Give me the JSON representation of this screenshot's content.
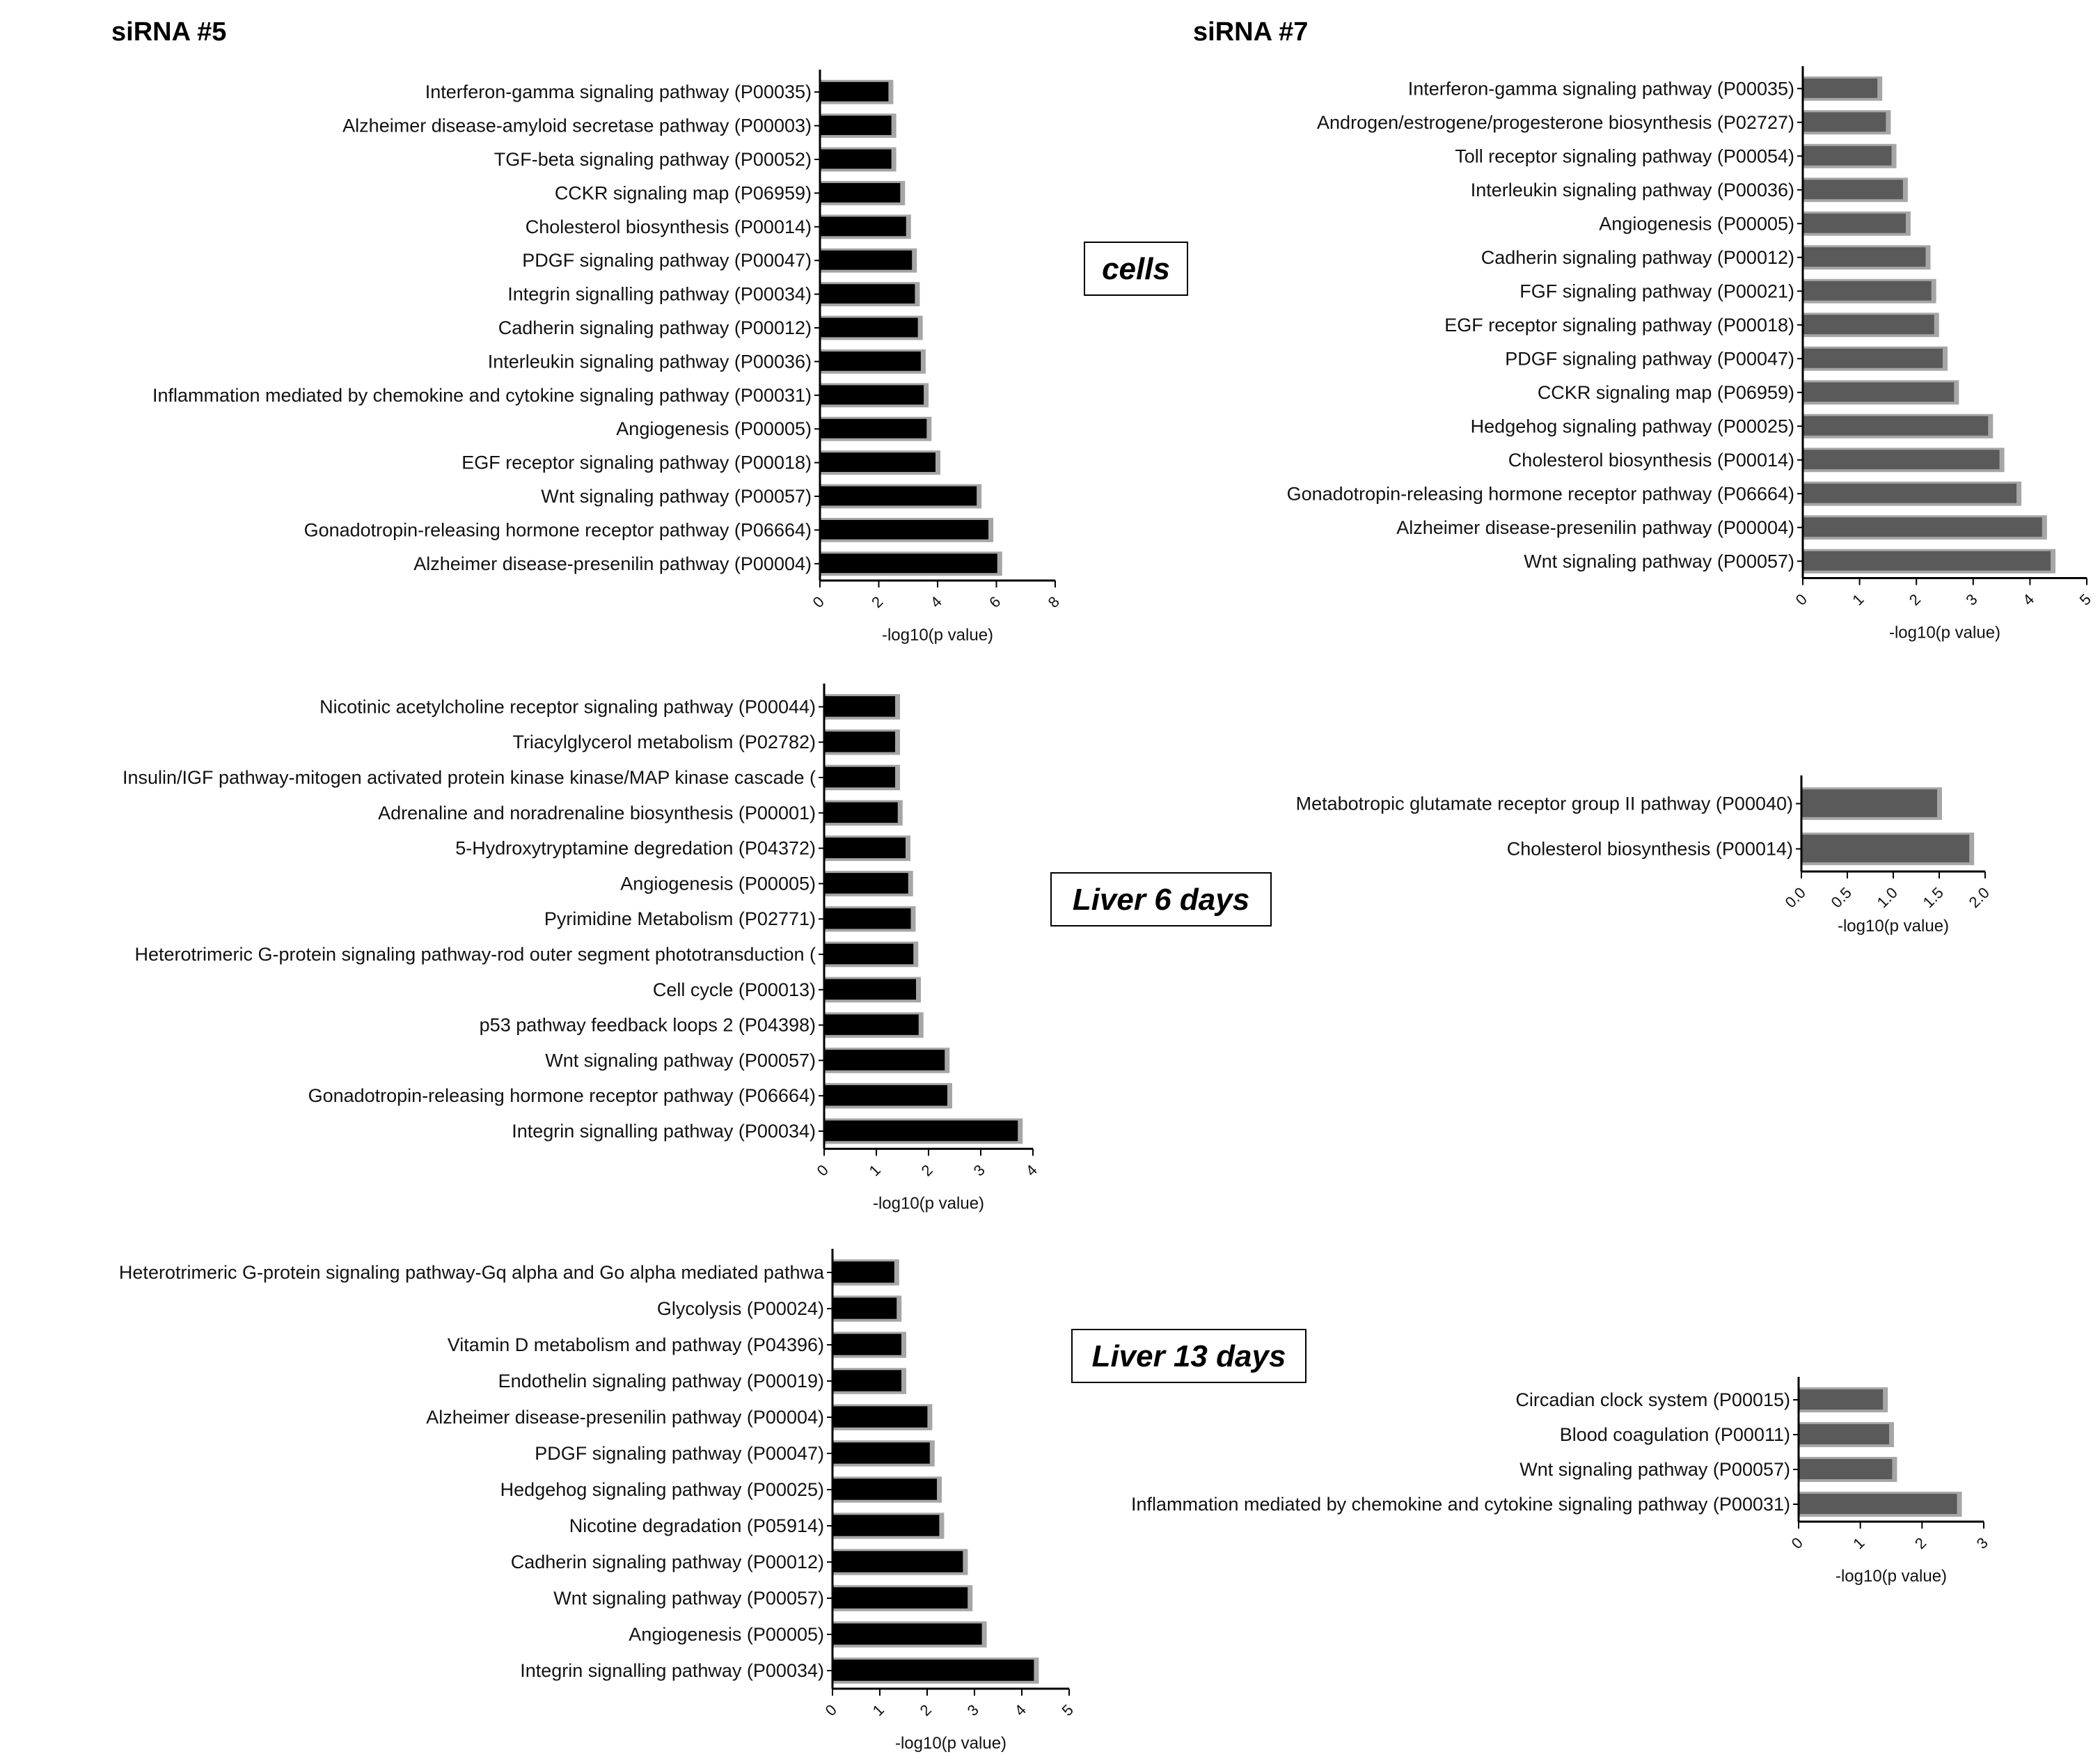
{
  "colors": {
    "bar_sirna5": "#000000",
    "bar_sirna7": "#5a5a5a",
    "bar_shadow": "#a6a6a6",
    "axis": "#000000"
  },
  "headers": {
    "sirna5": "siRNA #5",
    "sirna7": "siRNA #7"
  },
  "conditions": {
    "cells": "cells",
    "liver6": "Liver 6 days",
    "liver13": "Liver 13 days"
  },
  "chart_data": [
    {
      "id": "cells_sirna5",
      "type": "bar",
      "orientation": "horizontal",
      "title": "siRNA #5 - cells",
      "xlabel": "-log10(p value)",
      "xlim": [
        0,
        8
      ],
      "ticks": [
        "0",
        "2",
        "4",
        "6",
        "8"
      ],
      "categories": [
        "Interferon-gamma signaling pathway (P00035)",
        "Alzheimer disease-amyloid secretase pathway (P00003)",
        "TGF-beta signaling pathway (P00052)",
        "CCKR signaling map (P06959)",
        "Cholesterol biosynthesis (P00014)",
        "PDGF signaling pathway (P00047)",
        "Integrin signalling pathway (P00034)",
        "Cadherin signaling pathway (P00012)",
        "Interleukin signaling pathway (P00036)",
        "Inflammation mediated by chemokine and cytokine signaling pathway (P00031)",
        "Angiogenesis (P00005)",
        "EGF receptor signaling pathway (P00018)",
        "Wnt signaling pathway (P00057)",
        "Gonadotropin-releasing hormone receptor pathway (P06664)",
        "Alzheimer disease-presenilin pathway (P00004)"
      ],
      "values": [
        2.4,
        2.5,
        2.5,
        2.8,
        3.0,
        3.2,
        3.3,
        3.4,
        3.5,
        3.6,
        3.7,
        4.0,
        5.4,
        5.8,
        6.1
      ]
    },
    {
      "id": "cells_sirna7",
      "type": "bar",
      "orientation": "horizontal",
      "title": "siRNA #7 - cells",
      "xlabel": "-log10(p value)",
      "xlim": [
        0,
        5
      ],
      "ticks": [
        "0",
        "1",
        "2",
        "3",
        "4",
        "5"
      ],
      "categories": [
        "Interferon-gamma signaling pathway (P00035)",
        "Androgen/estrogene/progesterone biosynthesis (P02727)",
        "Toll receptor signaling pathway (P00054)",
        "Interleukin signaling pathway (P00036)",
        "Angiogenesis (P00005)",
        "Cadherin signaling pathway (P00012)",
        "FGF signaling pathway (P00021)",
        "EGF receptor signaling pathway (P00018)",
        "PDGF signaling pathway (P00047)",
        "CCKR signaling map (P06959)",
        "Hedgehog signaling pathway (P00025)",
        "Cholesterol biosynthesis (P00014)",
        "Gonadotropin-releasing hormone receptor pathway (P06664)",
        "Alzheimer disease-presenilin pathway (P00004)",
        "Wnt signaling pathway (P00057)"
      ],
      "values": [
        1.35,
        1.5,
        1.6,
        1.8,
        1.85,
        2.2,
        2.3,
        2.35,
        2.5,
        2.7,
        3.3,
        3.5,
        3.8,
        4.25,
        4.4
      ]
    },
    {
      "id": "liver6_sirna5",
      "type": "bar",
      "orientation": "horizontal",
      "title": "siRNA #5 - Liver 6 days",
      "xlabel": "-log10(p value)",
      "xlim": [
        0,
        4
      ],
      "ticks": [
        "0",
        "1",
        "2",
        "3",
        "4"
      ],
      "categories": [
        "Nicotinic acetylcholine receptor signaling pathway (P00044)",
        "Triacylglycerol metabolism (P02782)",
        "Insulin/IGF pathway-mitogen activated protein kinase kinase/MAP kinase cascade (",
        "Adrenaline and noradrenaline biosynthesis (P00001)",
        "5-Hydroxytryptamine degredation (P04372)",
        "Angiogenesis (P00005)",
        "Pyrimidine Metabolism (P02771)",
        "Heterotrimeric G-protein signaling pathway-rod outer segment phototransduction (",
        "Cell cycle (P00013)",
        "p53 pathway feedback loops 2 (P04398)",
        "Wnt signaling pathway (P00057)",
        "Gonadotropin-releasing hormone receptor pathway (P06664)",
        "Integrin signalling pathway (P00034)"
      ],
      "values": [
        1.4,
        1.4,
        1.4,
        1.45,
        1.6,
        1.65,
        1.7,
        1.75,
        1.8,
        1.85,
        2.35,
        2.4,
        3.75
      ]
    },
    {
      "id": "liver6_sirna7",
      "type": "bar",
      "orientation": "horizontal",
      "title": "siRNA #7 - Liver 6 days",
      "xlabel": "-log10(p value)",
      "xlim": [
        0,
        2
      ],
      "ticks": [
        "0.0",
        "0.5",
        "1.0",
        "1.5",
        "2.0"
      ],
      "categories": [
        "Metabotropic glutamate receptor group II pathway (P00040)",
        "Cholesterol biosynthesis (P00014)"
      ],
      "values": [
        1.5,
        1.85
      ]
    },
    {
      "id": "liver13_sirna5",
      "type": "bar",
      "orientation": "horizontal",
      "title": "siRNA #5 - Liver 13 days",
      "xlabel": "-log10(p value)",
      "xlim": [
        0,
        5
      ],
      "ticks": [
        "0",
        "1",
        "2",
        "3",
        "4",
        "5"
      ],
      "categories": [
        "Heterotrimeric G-protein signaling pathway-Gq alpha and Go alpha mediated pathwa",
        "Glycolysis (P00024)",
        "Vitamin D metabolism and pathway (P04396)",
        "Endothelin signaling pathway (P00019)",
        "Alzheimer disease-presenilin pathway (P00004)",
        "PDGF signaling pathway (P00047)",
        "Hedgehog signaling pathway (P00025)",
        "Nicotine degradation (P05914)",
        "Cadherin signaling pathway (P00012)",
        "Wnt signaling pathway (P00057)",
        "Angiogenesis (P00005)",
        "Integrin signalling pathway (P00034)"
      ],
      "values": [
        1.35,
        1.4,
        1.5,
        1.5,
        2.05,
        2.1,
        2.25,
        2.3,
        2.8,
        2.9,
        3.2,
        4.3
      ]
    },
    {
      "id": "liver13_sirna7",
      "type": "bar",
      "orientation": "horizontal",
      "title": "siRNA #7 - Liver 13 days",
      "xlabel": "-log10(p value)",
      "xlim": [
        0,
        3
      ],
      "ticks": [
        "0",
        "1",
        "2",
        "3"
      ],
      "categories": [
        "Circadian clock system (P00015)",
        "Blood coagulation (P00011)",
        "Wnt signaling pathway (P00057)",
        "Inflammation mediated by chemokine and cytokine signaling pathway (P00031)"
      ],
      "values": [
        1.4,
        1.5,
        1.55,
        2.6
      ]
    }
  ]
}
